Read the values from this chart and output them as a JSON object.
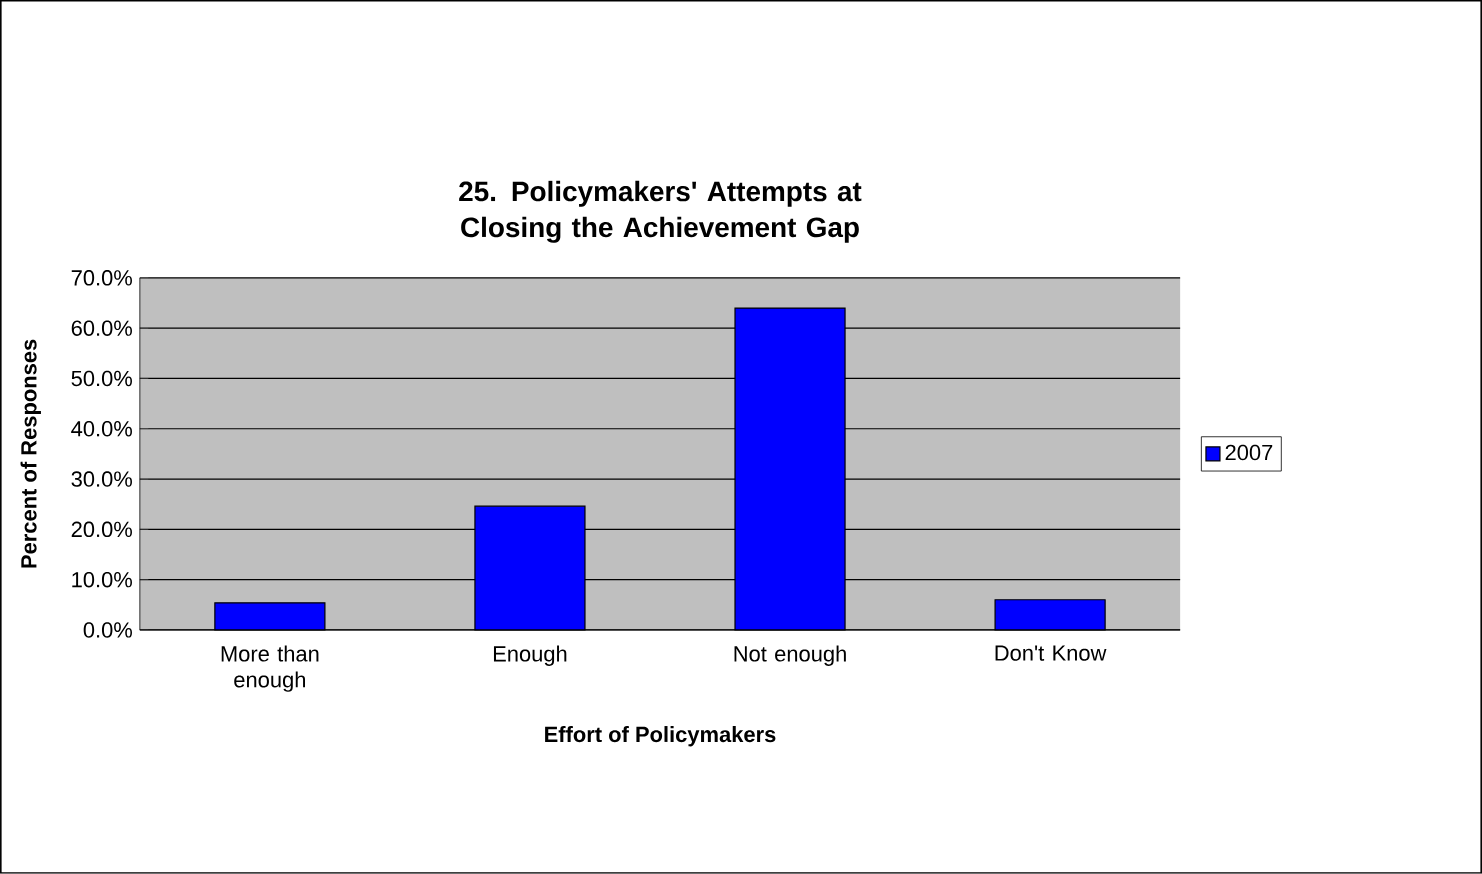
{
  "chart_data": {
    "type": "bar",
    "title": "25. Policymakers' Attempts at Closing the Achievement Gap",
    "xlabel": "Effort of Policymakers",
    "ylabel": "Percent of Responses",
    "categories": [
      "More than enough",
      "Enough",
      "Not enough",
      "Don't Know"
    ],
    "series": [
      {
        "name": "2007",
        "color": "#0000ff",
        "values": [
          5.4,
          24.6,
          64.0,
          6.0
        ]
      }
    ],
    "ylim": [
      0,
      70
    ],
    "yticks": [
      {
        "value": 0,
        "label": "0.0%"
      },
      {
        "value": 10,
        "label": "10.0%"
      },
      {
        "value": 20,
        "label": "20.0%"
      },
      {
        "value": 30,
        "label": "30.0%"
      },
      {
        "value": 40,
        "label": "40.0%"
      },
      {
        "value": 50,
        "label": "50.0%"
      },
      {
        "value": 60,
        "label": "60.0%"
      },
      {
        "value": 70,
        "label": "70.0%"
      }
    ],
    "grid": "y",
    "legend": "right"
  }
}
